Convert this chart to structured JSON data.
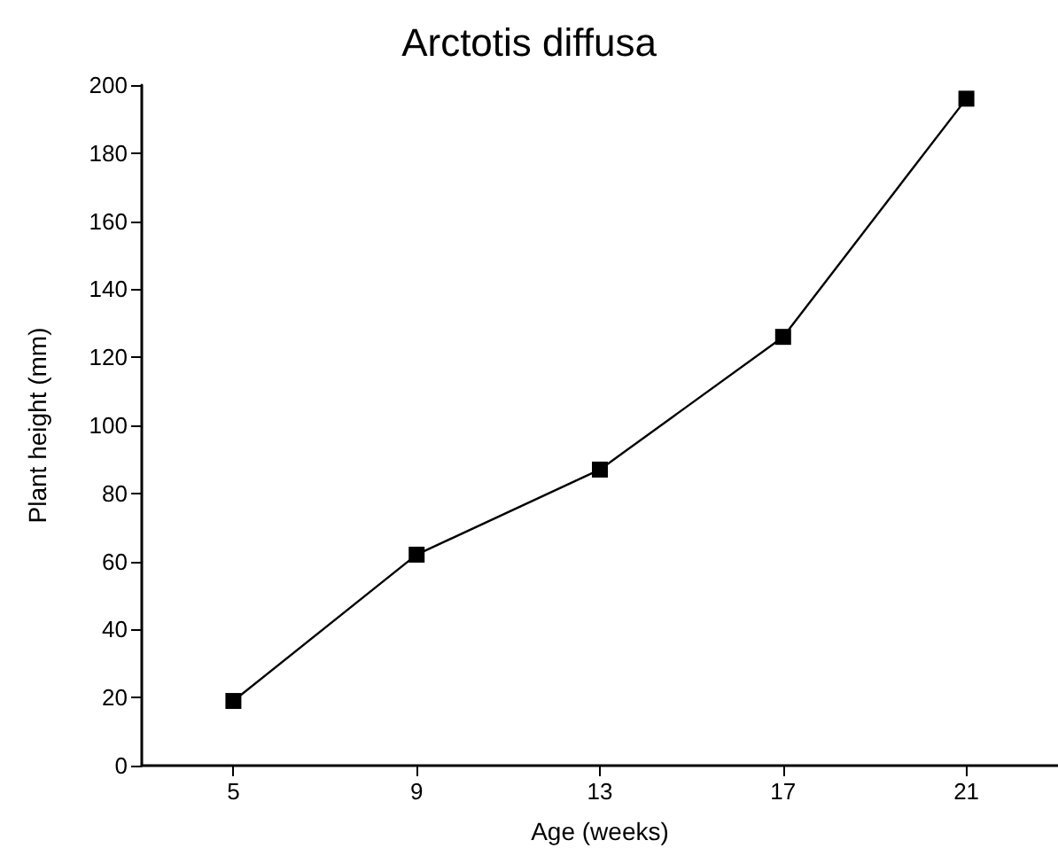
{
  "chart_data": {
    "type": "line",
    "title": "Arctotis diffusa",
    "xlabel": "Age (weeks)",
    "ylabel": "Plant height (mm)",
    "categories": [
      "5",
      "9",
      "13",
      "17",
      "21"
    ],
    "series": [
      {
        "color": "#000000",
        "values": [
          19,
          62,
          87,
          126,
          196
        ]
      }
    ],
    "ylim": [
      0,
      200
    ],
    "yticks": [
      0,
      20,
      40,
      60,
      80,
      100,
      120,
      140,
      160,
      180,
      200
    ],
    "grid": false,
    "marker": "square",
    "line_style": "solid"
  }
}
